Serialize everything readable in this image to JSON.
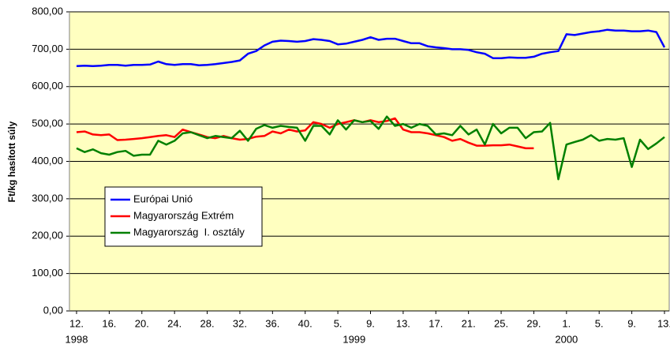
{
  "chart_data": {
    "type": "line",
    "y_label": "Ft/kg hasított súly",
    "categories": [
      "12.",
      null,
      null,
      null,
      "16.",
      null,
      null,
      null,
      "20.",
      null,
      null,
      null,
      "24.",
      null,
      null,
      null,
      "28.",
      null,
      null,
      null,
      "32.",
      null,
      null,
      null,
      "36.",
      null,
      null,
      null,
      "40.",
      null,
      null,
      null,
      "5.",
      null,
      null,
      null,
      "9.",
      null,
      null,
      null,
      "13.",
      null,
      null,
      null,
      "17.",
      null,
      null,
      null,
      "21.",
      null,
      null,
      null,
      "25.",
      null,
      null,
      null,
      "29.",
      null,
      null,
      null,
      "1.",
      null,
      null,
      null,
      "5.",
      null,
      null,
      null,
      "9.",
      null,
      null,
      null,
      "13."
    ],
    "years": [
      "1998",
      "1999",
      "2000"
    ],
    "ylim": [
      0,
      800
    ],
    "yticks": [
      {
        "value": 0,
        "label": "0,00"
      },
      {
        "value": 100,
        "label": "100,00"
      },
      {
        "value": 200,
        "label": "200,00"
      },
      {
        "value": 300,
        "label": "300,00"
      },
      {
        "value": 400,
        "label": "400,00"
      },
      {
        "value": 500,
        "label": "500,00"
      },
      {
        "value": 600,
        "label": "600,00"
      },
      {
        "value": 700,
        "label": "700,00"
      },
      {
        "value": 800,
        "label": "800,00"
      }
    ],
    "grid": true,
    "legend": "lower-left",
    "series": [
      {
        "name": "Európai Unió",
        "color": "#0000ff",
        "values": [
          655,
          656,
          655,
          656,
          658,
          658,
          656,
          658,
          658,
          659,
          667,
          660,
          658,
          660,
          660,
          657,
          658,
          660,
          663,
          666,
          670,
          688,
          695,
          710,
          720,
          723,
          722,
          720,
          722,
          727,
          725,
          722,
          713,
          715,
          720,
          725,
          732,
          725,
          728,
          728,
          722,
          716,
          716,
          708,
          705,
          703,
          700,
          700,
          698,
          692,
          688,
          676,
          676,
          678,
          677,
          677,
          680,
          688,
          692,
          695,
          740,
          738,
          742,
          746,
          748,
          752,
          750,
          750,
          748,
          748,
          750,
          746,
          705
        ]
      },
      {
        "name": "Magyarország Extrém",
        "color": "#ff0000",
        "values": [
          478,
          480,
          472,
          470,
          472,
          457,
          458,
          460,
          462,
          465,
          468,
          470,
          465,
          485,
          478,
          472,
          465,
          462,
          468,
          462,
          458,
          460,
          466,
          468,
          480,
          475,
          485,
          480,
          483,
          505,
          500,
          490,
          500,
          505,
          510,
          505,
          510,
          505,
          508,
          515,
          485,
          478,
          478,
          475,
          470,
          465,
          455,
          460,
          450,
          442,
          442,
          443,
          443,
          445,
          440,
          435,
          435,
          null,
          null,
          null,
          null,
          null,
          null,
          null,
          null,
          null,
          null,
          null,
          null,
          null,
          null,
          null,
          null
        ]
      },
      {
        "name": "Magyarország  I. osztály",
        "color": "#008000",
        "values": [
          435,
          425,
          432,
          422,
          418,
          425,
          428,
          415,
          418,
          418,
          455,
          445,
          455,
          475,
          478,
          470,
          462,
          468,
          465,
          462,
          482,
          455,
          487,
          497,
          490,
          495,
          492,
          490,
          455,
          495,
          495,
          472,
          510,
          485,
          510,
          505,
          508,
          487,
          520,
          495,
          500,
          490,
          500,
          495,
          472,
          475,
          470,
          495,
          472,
          485,
          445,
          500,
          475,
          490,
          490,
          462,
          478,
          480,
          503,
          352,
          445,
          452,
          458,
          470,
          455,
          460,
          458,
          462,
          385,
          458,
          433,
          448,
          465
        ]
      }
    ]
  }
}
